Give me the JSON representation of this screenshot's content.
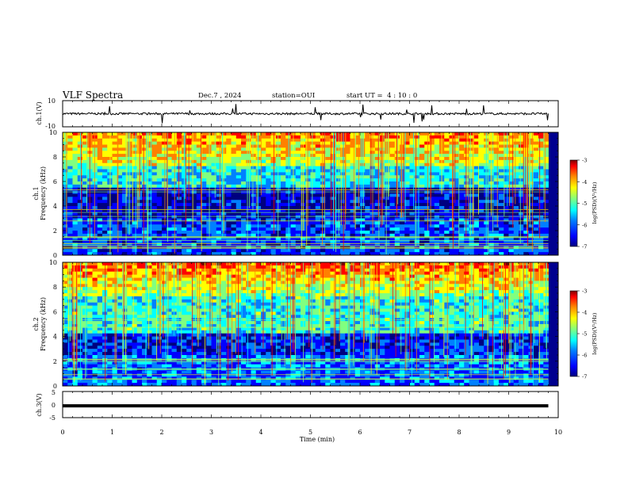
{
  "header": {
    "title": "VLF Spectra",
    "date": "Dec.7 , 2024",
    "station": "station=OUI",
    "start": "start UT =  4 : 10 : 0"
  },
  "colors": {
    "colormap": [
      "#00007f",
      "#0000ff",
      "#0080ff",
      "#00ffff",
      "#80ff80",
      "#ffff00",
      "#ff8000",
      "#ff0000",
      "#7f0000"
    ]
  },
  "chart_data": [
    {
      "type": "line",
      "panel": "ch1-waveform",
      "ylabel": "ch.1(V)",
      "ylim": [
        -10,
        10
      ],
      "yticks": [
        "10",
        "-10"
      ],
      "level": 0,
      "xlim": [
        0,
        10
      ]
    },
    {
      "type": "heatmap",
      "panel": "ch1-spectrogram",
      "ylabel": "ch.1\nFrequency (kHz)",
      "ylim": [
        0,
        10
      ],
      "yticks": [
        "0",
        "2",
        "4",
        "6",
        "8",
        "10"
      ],
      "xlim": [
        0,
        9.8
      ],
      "colorbar": {
        "label": "log(PSD)(V²/Hz)",
        "range": [
          -7,
          -3
        ],
        "ticks": [
          "-3",
          "-4",
          "-5",
          "-6",
          "-7"
        ]
      }
    },
    {
      "type": "heatmap",
      "panel": "ch2-spectrogram",
      "ylabel": "ch.2\nFrequency (kHz)",
      "ylim": [
        0,
        10
      ],
      "yticks": [
        "0",
        "2",
        "4",
        "6",
        "8",
        "10"
      ],
      "xlim": [
        0,
        9.8
      ],
      "colorbar": {
        "label": "log(PSD)(V²/Hz)",
        "range": [
          -7,
          -3
        ],
        "ticks": [
          "-3",
          "-4",
          "-5",
          "-6",
          "-7"
        ]
      }
    },
    {
      "type": "line",
      "panel": "ch3-waveform",
      "ylabel": "ch.3(V)",
      "ylim": [
        -5,
        5
      ],
      "yticks": [
        "5",
        "0",
        "-5"
      ],
      "level": -0.5,
      "xlim": [
        0,
        10
      ]
    }
  ],
  "xaxis": {
    "label": "Time (min)",
    "ticks": [
      "0",
      "1",
      "2",
      "3",
      "4",
      "5",
      "6",
      "7",
      "8",
      "9",
      "10"
    ]
  },
  "labels": {
    "ch1_volt": "ch.1(V)",
    "ch1_freq": "ch.1",
    "ch2_freq": "ch.2",
    "frequency": "Frequency (kHz)",
    "ch3_volt": "ch.3(V)",
    "cb_label": "log(PSD)(V²/Hz)"
  }
}
